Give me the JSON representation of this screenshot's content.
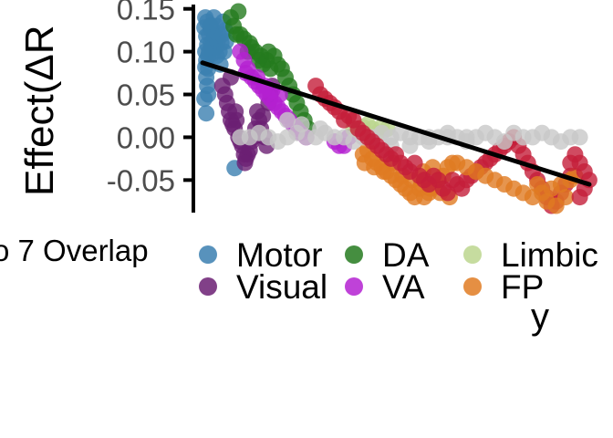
{
  "chart_data": {
    "type": "scatter",
    "title": "",
    "ylabel": "Effect(ΔR",
    "xlabel": "",
    "ylim": [
      -0.088,
      0.155
    ],
    "yticks": [
      -0.05,
      0.0,
      0.05,
      0.1,
      0.15
    ],
    "ytick_labels": [
      "-0.05",
      "0.00",
      "0.05",
      "0.10",
      "0.15"
    ],
    "x_axis_visible": false,
    "grid": false,
    "legend": {
      "title": "o 7 Overlap",
      "placement": "bottom",
      "items": [
        {
          "name": "Motor",
          "color": "#3b7fb0"
        },
        {
          "name": "Visual",
          "color": "#6b1f73"
        },
        {
          "name": "DA",
          "color": "#247a1e"
        },
        {
          "name": "VA",
          "color": "#b421d1"
        },
        {
          "name": "Limbic",
          "color": "#bcd68e"
        },
        {
          "name": "FP",
          "color": "#e07b22"
        }
      ]
    },
    "extra_colors": {
      "Default": "#c8c8c8",
      "Other": "#c41e3a",
      "fit_line": "#000000"
    },
    "series_points_note": "points: [x_index, y]",
    "series": [
      {
        "color": "#3b7fb0",
        "points": [
          [
            2,
            0.128
          ],
          [
            3,
            0.14
          ],
          [
            4,
            0.118
          ],
          [
            5,
            0.108
          ],
          [
            6,
            0.095
          ],
          [
            3,
            0.082
          ],
          [
            4,
            0.07
          ],
          [
            5,
            0.06
          ],
          [
            6,
            0.05
          ],
          [
            2,
            0.045
          ],
          [
            4,
            0.028
          ],
          [
            7,
            0.12
          ],
          [
            8,
            0.13
          ],
          [
            9,
            0.11
          ],
          [
            10,
            0.125
          ],
          [
            11,
            0.098
          ],
          [
            12,
            0.14
          ],
          [
            13,
            0.118
          ],
          [
            14,
            0.105
          ],
          [
            15,
            0.13
          ],
          [
            16,
            0.112
          ],
          [
            17,
            0.12
          ],
          [
            3,
            0.1
          ],
          [
            5,
            0.135
          ],
          [
            7,
            0.1
          ],
          [
            10,
            0.105
          ],
          [
            20,
            0.11
          ],
          [
            21,
            0.12
          ],
          [
            24,
            0.125
          ],
          [
            23,
            0.1
          ],
          [
            18,
            0.1
          ],
          [
            4,
            0.09
          ],
          [
            6,
            0.08
          ],
          [
            9,
            0.13
          ],
          [
            12,
            0.115
          ],
          [
            15,
            0.095
          ],
          [
            25,
            0.112
          ],
          [
            22,
            0.135
          ],
          [
            34,
            -0.036
          ],
          [
            19,
            0.085
          ]
        ]
      },
      {
        "color": "#6b1f73",
        "points": [
          [
            21,
            0.06
          ],
          [
            24,
            0.05
          ],
          [
            26,
            0.04
          ],
          [
            28,
            0.03
          ],
          [
            30,
            0.02
          ],
          [
            32,
            0.015
          ],
          [
            34,
            0.01
          ],
          [
            36,
            0.02
          ],
          [
            38,
            0.0
          ],
          [
            40,
            -0.005
          ],
          [
            42,
            -0.01
          ],
          [
            44,
            -0.02
          ],
          [
            46,
            -0.025
          ],
          [
            48,
            -0.02
          ],
          [
            50,
            -0.015
          ],
          [
            52,
            -0.005
          ],
          [
            54,
            0.0
          ],
          [
            56,
            0.01
          ],
          [
            58,
            0.03
          ],
          [
            60,
            0.02
          ],
          [
            62,
            0.01
          ],
          [
            64,
            0.025
          ],
          [
            66,
            0.0
          ],
          [
            68,
            -0.01
          ],
          [
            70,
            0.04
          ],
          [
            72,
            0.05
          ],
          [
            74,
            0.06
          ],
          [
            30,
            0.07
          ],
          [
            45,
            -0.03
          ],
          [
            35,
            0.03
          ]
        ]
      },
      {
        "color": "#247a1e",
        "points": [
          [
            30,
            0.14
          ],
          [
            33,
            0.13
          ],
          [
            36,
            0.12
          ],
          [
            40,
            0.12
          ],
          [
            44,
            0.115
          ],
          [
            48,
            0.1
          ],
          [
            52,
            0.105
          ],
          [
            56,
            0.1
          ],
          [
            60,
            0.09
          ],
          [
            64,
            0.085
          ],
          [
            68,
            0.09
          ],
          [
            72,
            0.08
          ],
          [
            76,
            0.095
          ],
          [
            80,
            0.085
          ],
          [
            84,
            0.08
          ],
          [
            88,
            0.07
          ],
          [
            92,
            0.06
          ],
          [
            96,
            0.05
          ],
          [
            100,
            0.04
          ],
          [
            104,
            0.03
          ],
          [
            108,
            0.02
          ],
          [
            112,
            0.01
          ],
          [
            38,
            0.147
          ],
          [
            50,
            0.11
          ],
          [
            62,
            0.095
          ],
          [
            70,
            0.1
          ]
        ]
      },
      {
        "color": "#b421d1",
        "points": [
          [
            40,
            0.1
          ],
          [
            44,
            0.09
          ],
          [
            48,
            0.08
          ],
          [
            52,
            0.07
          ],
          [
            56,
            0.065
          ],
          [
            60,
            0.06
          ],
          [
            64,
            0.055
          ],
          [
            68,
            0.05
          ],
          [
            72,
            0.045
          ],
          [
            76,
            0.04
          ],
          [
            80,
            0.035
          ],
          [
            84,
            0.03
          ],
          [
            88,
            0.025
          ],
          [
            92,
            0.02
          ],
          [
            96,
            0.015
          ],
          [
            100,
            0.01
          ],
          [
            104,
            0.005
          ],
          [
            110,
            0.0
          ],
          [
            140,
            -0.005
          ],
          [
            145,
            -0.01
          ],
          [
            150,
            -0.01
          ],
          [
            155,
            0.0
          ],
          [
            46,
            0.075
          ],
          [
            58,
            0.07
          ],
          [
            66,
            0.06
          ],
          [
            74,
            0.055
          ],
          [
            82,
            0.05
          ]
        ]
      },
      {
        "color": "#bcd68e",
        "points": [
          [
            160,
            0.01
          ],
          [
            165,
            0.008
          ],
          [
            170,
            0.012
          ],
          [
            175,
            0.015
          ],
          [
            180,
            0.01
          ],
          [
            185,
            0.005
          ],
          [
            190,
            0.012
          ],
          [
            196,
            0.01
          ]
        ]
      },
      {
        "color": "#e07b22",
        "points": [
          [
            170,
            -0.02
          ],
          [
            175,
            -0.015
          ],
          [
            180,
            -0.025
          ],
          [
            185,
            -0.03
          ],
          [
            190,
            -0.035
          ],
          [
            195,
            -0.04
          ],
          [
            200,
            -0.045
          ],
          [
            205,
            -0.05
          ],
          [
            210,
            -0.055
          ],
          [
            215,
            -0.06
          ],
          [
            220,
            -0.065
          ],
          [
            225,
            -0.07
          ],
          [
            230,
            -0.06
          ],
          [
            235,
            -0.07
          ],
          [
            240,
            -0.065
          ],
          [
            245,
            -0.058
          ],
          [
            250,
            -0.05
          ],
          [
            255,
            -0.045
          ],
          [
            260,
            -0.035
          ],
          [
            265,
            -0.03
          ],
          [
            172,
            -0.03
          ],
          [
            182,
            -0.035
          ],
          [
            192,
            -0.04
          ],
          [
            202,
            -0.03
          ],
          [
            212,
            -0.045
          ],
          [
            222,
            -0.05
          ],
          [
            232,
            -0.055
          ],
          [
            242,
            -0.06
          ],
          [
            252,
            -0.065
          ],
          [
            262,
            -0.07
          ],
          [
            234,
            -0.04
          ],
          [
            244,
            -0.035
          ]
        ]
      },
      {
        "color": "#c8c8c8",
        "points": [
          [
            40,
            0.0
          ],
          [
            50,
            0.0
          ],
          [
            60,
            0.005
          ],
          [
            70,
            0.0
          ],
          [
            80,
            -0.005
          ],
          [
            90,
            0.0
          ],
          [
            100,
            0.005
          ],
          [
            110,
            0.0
          ],
          [
            120,
            0.0
          ],
          [
            130,
            0.005
          ],
          [
            140,
            0.0
          ],
          [
            150,
            0.0
          ],
          [
            160,
            -0.005
          ],
          [
            170,
            0.0
          ],
          [
            180,
            0.0
          ],
          [
            190,
            0.005
          ],
          [
            200,
            0.0
          ],
          [
            210,
            0.005
          ],
          [
            220,
            0.0
          ],
          [
            230,
            0.0
          ],
          [
            240,
            -0.005
          ],
          [
            250,
            0.0
          ],
          [
            260,
            0.0
          ],
          [
            270,
            0.0
          ],
          [
            280,
            0.0
          ],
          [
            200,
            -0.01
          ],
          [
            220,
            -0.01
          ],
          [
            240,
            0.0
          ],
          [
            260,
            0.005
          ],
          [
            90,
            0.02
          ],
          [
            105,
            0.015
          ],
          [
            125,
            0.01
          ]
        ]
      },
      {
        "color": "#c41e3a",
        "points": [
          [
            120,
            0.06
          ],
          [
            125,
            0.05
          ],
          [
            130,
            0.045
          ],
          [
            135,
            0.04
          ],
          [
            140,
            0.035
          ],
          [
            145,
            0.03
          ],
          [
            150,
            0.02
          ],
          [
            155,
            0.025
          ],
          [
            160,
            0.02
          ],
          [
            165,
            0.01
          ],
          [
            170,
            0.005
          ],
          [
            175,
            0.0
          ],
          [
            180,
            -0.005
          ],
          [
            185,
            -0.01
          ],
          [
            190,
            -0.015
          ],
          [
            195,
            -0.02
          ],
          [
            200,
            -0.025
          ],
          [
            205,
            -0.02
          ],
          [
            210,
            -0.03
          ],
          [
            215,
            -0.035
          ],
          [
            220,
            -0.04
          ],
          [
            225,
            -0.03
          ],
          [
            230,
            -0.045
          ],
          [
            235,
            -0.05
          ],
          [
            240,
            -0.055
          ],
          [
            245,
            -0.045
          ],
          [
            250,
            -0.05
          ],
          [
            255,
            -0.06
          ],
          [
            260,
            -0.065
          ],
          [
            265,
            -0.05
          ],
          [
            270,
            -0.055
          ],
          [
            275,
            -0.06
          ],
          [
            280,
            -0.05
          ],
          [
            285,
            -0.045
          ],
          [
            290,
            -0.04
          ],
          [
            295,
            -0.035
          ],
          [
            300,
            -0.03
          ],
          [
            305,
            -0.025
          ],
          [
            310,
            -0.02
          ],
          [
            315,
            -0.015
          ],
          [
            320,
            -0.01
          ],
          [
            325,
            -0.005
          ],
          [
            330,
            0.0
          ],
          [
            335,
            -0.01
          ],
          [
            340,
            -0.02
          ],
          [
            345,
            -0.03
          ],
          [
            350,
            -0.04
          ],
          [
            355,
            -0.05
          ],
          [
            360,
            -0.06
          ],
          [
            365,
            -0.07
          ],
          [
            370,
            -0.08
          ],
          [
            375,
            -0.075
          ],
          [
            380,
            -0.065
          ],
          [
            385,
            -0.055
          ],
          [
            390,
            -0.045
          ]
        ]
      },
      {
        "color": "#e07b22",
        "points": [
          [
            270,
            -0.03
          ],
          [
            280,
            -0.035
          ],
          [
            290,
            -0.04
          ],
          [
            300,
            -0.045
          ],
          [
            310,
            -0.05
          ],
          [
            320,
            -0.055
          ],
          [
            330,
            -0.06
          ],
          [
            340,
            -0.065
          ],
          [
            350,
            -0.07
          ],
          [
            360,
            -0.065
          ],
          [
            370,
            -0.06
          ],
          [
            380,
            -0.055
          ],
          [
            390,
            -0.05
          ],
          [
            395,
            -0.045
          ],
          [
            385,
            -0.07
          ],
          [
            375,
            -0.08
          ],
          [
            365,
            -0.075
          ],
          [
            355,
            -0.055
          ]
        ]
      },
      {
        "color": "#c8c8c8",
        "points": [
          [
            280,
            -0.005
          ],
          [
            290,
            0.0
          ],
          [
            300,
            0.005
          ],
          [
            310,
            0.0
          ],
          [
            320,
            -0.005
          ],
          [
            330,
            0.005
          ],
          [
            340,
            0.0
          ],
          [
            350,
            0.0
          ],
          [
            360,
            0.005
          ],
          [
            370,
            0.0
          ],
          [
            380,
            -0.005
          ],
          [
            390,
            0.0
          ],
          [
            400,
            0.0
          ]
        ]
      },
      {
        "color": "#c41e3a",
        "points": [
          [
            395,
            -0.02
          ],
          [
            400,
            -0.03
          ],
          [
            405,
            -0.04
          ],
          [
            410,
            -0.05
          ],
          [
            405,
            -0.06
          ],
          [
            400,
            -0.07
          ],
          [
            390,
            -0.03
          ]
        ]
      }
    ],
    "fit_line": {
      "x": [
        0,
        410
      ],
      "y": [
        0.087,
        -0.055
      ]
    },
    "x_domain": [
      0,
      412
    ]
  },
  "stray_glyph": "y"
}
